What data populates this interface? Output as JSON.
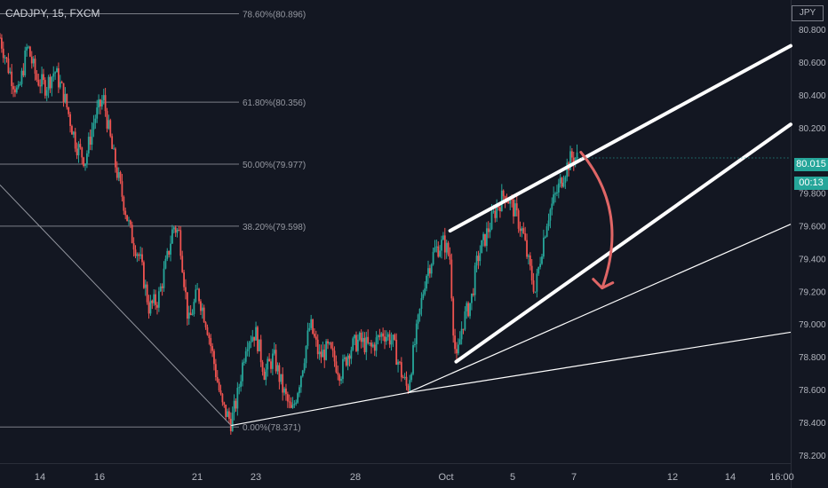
{
  "header": {
    "ticker": "CADJPY, 15, FXCM"
  },
  "axis": {
    "currency_badge": "JPY",
    "last_price": "80.015",
    "countdown": "00:13"
  },
  "colors": {
    "background": "#131722",
    "grid_text": "#b2b5be",
    "up_candle": "#26a69a",
    "down_candle": "#ef5350",
    "channel": "#ffffff",
    "arrow": "#e06666",
    "fib_line": "#9598a1"
  },
  "chart_data": {
    "type": "candlestick",
    "symbol": "CADJPY",
    "interval": "15",
    "source": "FXCM",
    "y_ticks": [
      "80.800",
      "80.600",
      "80.400",
      "80.200",
      "80.000",
      "79.800",
      "79.600",
      "79.400",
      "79.200",
      "79.000",
      "78.800",
      "78.600",
      "78.400",
      "78.200"
    ],
    "ylim": [
      78.15,
      80.98
    ],
    "x_ticks": [
      "14",
      "16",
      "21",
      "23",
      "28",
      "Oct",
      "5",
      "7",
      "12",
      "14",
      "16:00"
    ],
    "fib_levels": [
      {
        "label": "78.60%(80.896)",
        "value": 80.896
      },
      {
        "label": "61.80%(80.356)",
        "value": 80.356
      },
      {
        "label": "50.00%(79.977)",
        "value": 79.977
      },
      {
        "label": "38.20%(79.598)",
        "value": 79.598
      },
      {
        "label": "0.00%(78.371)",
        "value": 78.371
      }
    ],
    "last_price": 80.015,
    "price_path": [
      [
        0,
        80.75
      ],
      [
        3,
        80.55
      ],
      [
        6,
        80.4
      ],
      [
        9,
        80.7
      ],
      [
        12,
        80.5
      ],
      [
        15,
        80.45
      ],
      [
        18,
        80.55
      ],
      [
        21,
        80.4
      ],
      [
        25,
        80.1
      ],
      [
        28,
        80.0
      ],
      [
        31,
        80.25
      ],
      [
        34,
        80.38
      ],
      [
        37,
        80.05
      ],
      [
        40,
        79.8
      ],
      [
        43,
        79.55
      ],
      [
        46,
        79.4
      ],
      [
        49,
        79.1
      ],
      [
        52,
        79.15
      ],
      [
        55,
        79.4
      ],
      [
        57,
        79.6
      ],
      [
        59,
        79.55
      ],
      [
        62,
        79.0
      ],
      [
        65,
        79.2
      ],
      [
        68,
        79.0
      ],
      [
        71,
        78.7
      ],
      [
        73,
        78.5
      ],
      [
        76,
        78.4
      ],
      [
        78,
        78.55
      ],
      [
        81,
        78.9
      ],
      [
        84,
        78.95
      ],
      [
        87,
        78.7
      ],
      [
        90,
        78.8
      ],
      [
        93,
        78.6
      ],
      [
        96,
        78.45
      ],
      [
        99,
        78.7
      ],
      [
        102,
        79.0
      ],
      [
        105,
        78.8
      ],
      [
        108,
        78.85
      ],
      [
        112,
        78.7
      ],
      [
        115,
        78.85
      ],
      [
        118,
        78.9
      ],
      [
        122,
        78.85
      ],
      [
        126,
        78.95
      ],
      [
        129,
        78.9
      ],
      [
        132,
        78.7
      ],
      [
        134,
        78.6
      ],
      [
        137,
        78.95
      ],
      [
        140,
        79.3
      ],
      [
        143,
        79.45
      ],
      [
        146,
        79.5
      ],
      [
        148,
        79.4
      ],
      [
        149,
        79.0
      ],
      [
        150,
        78.75
      ],
      [
        152,
        79.0
      ],
      [
        155,
        79.15
      ],
      [
        157,
        79.4
      ],
      [
        160,
        79.55
      ],
      [
        163,
        79.7
      ],
      [
        166,
        79.8
      ],
      [
        169,
        79.7
      ],
      [
        172,
        79.55
      ],
      [
        174,
        79.35
      ],
      [
        176,
        79.2
      ],
      [
        178,
        79.45
      ],
      [
        180,
        79.65
      ],
      [
        183,
        79.8
      ],
      [
        186,
        79.95
      ],
      [
        188,
        80.02
      ],
      [
        190,
        80.015
      ]
    ],
    "x_domain": [
      0,
      260
    ],
    "annotations": [
      {
        "type": "channel-upper",
        "from": [
          148,
          79.57
        ],
        "to": [
          260,
          80.7
        ]
      },
      {
        "type": "channel-lower",
        "from": [
          150,
          78.77
        ],
        "to": [
          260,
          80.22
        ]
      },
      {
        "type": "trendline",
        "from": [
          76,
          78.38
        ],
        "to": [
          134,
          78.58
        ]
      },
      {
        "type": "trendline",
        "from": [
          134,
          78.58
        ],
        "to": [
          260,
          79.61
        ]
      },
      {
        "type": "trendline",
        "from": [
          134,
          78.58
        ],
        "to": [
          260,
          78.95
        ]
      },
      {
        "type": "fib-diagonal",
        "from": [
          0,
          79.85
        ],
        "to": [
          76,
          78.38
        ]
      },
      {
        "type": "arrow",
        "from": [
          191,
          80.05
        ],
        "to": [
          198,
          79.22
        ]
      }
    ]
  }
}
